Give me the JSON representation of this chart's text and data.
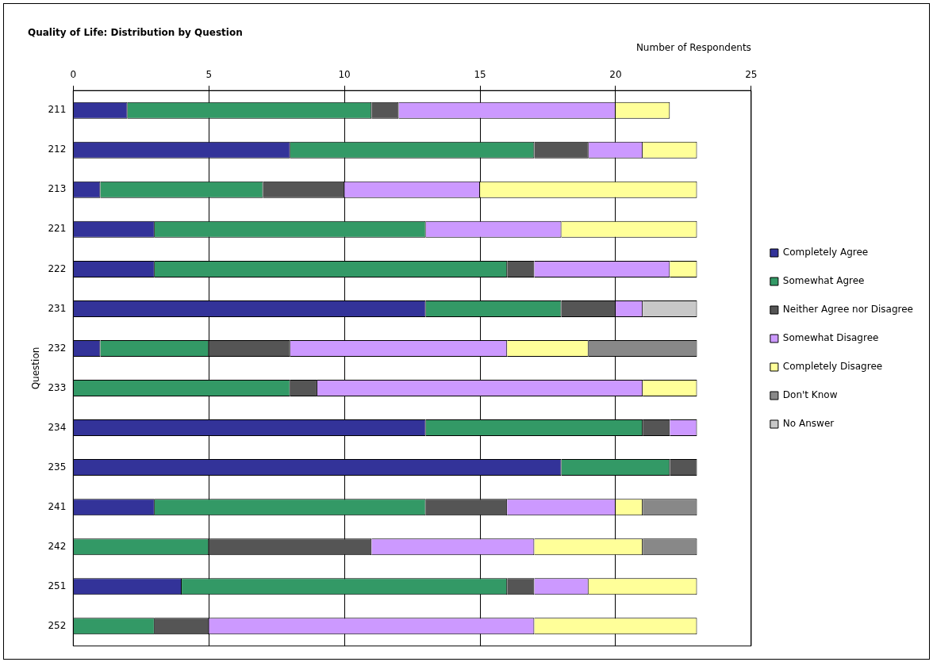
{
  "chart_data": {
    "type": "bar",
    "orientation": "horizontal",
    "stacked": true,
    "title": "Quality of Life: Distribution by Question",
    "xlabel": "Number of Respondents",
    "ylabel": "Question",
    "categories": [
      "211",
      "212",
      "213",
      "221",
      "222",
      "231",
      "232",
      "233",
      "234",
      "235",
      "241",
      "242",
      "251",
      "252"
    ],
    "xlim": [
      0,
      25
    ],
    "xticks": [
      0,
      5,
      10,
      15,
      20,
      25
    ],
    "grid": "x",
    "legend": "right",
    "series": [
      {
        "name": "Completely Agree",
        "color": "#333399",
        "values": [
          2,
          8,
          1,
          3,
          3,
          13,
          1,
          0,
          13,
          18,
          3,
          0,
          4,
          0
        ]
      },
      {
        "name": "Somewhat Agree",
        "color": "#339966",
        "values": [
          9,
          9,
          6,
          10,
          13,
          5,
          4,
          8,
          8,
          4,
          10,
          5,
          12,
          3
        ]
      },
      {
        "name": "Neither Agree nor Disagree",
        "color": "#555555",
        "values": [
          1,
          2,
          3,
          0,
          1,
          2,
          3,
          1,
          1,
          1,
          3,
          6,
          1,
          2
        ]
      },
      {
        "name": "Somewhat Disagree",
        "color": "#cc99ff",
        "values": [
          8,
          2,
          5,
          5,
          5,
          1,
          8,
          12,
          1,
          0,
          4,
          6,
          2,
          12
        ]
      },
      {
        "name": "Completely Disagree",
        "color": "#ffff99",
        "values": [
          2,
          2,
          8,
          5,
          1,
          0,
          3,
          2,
          0,
          0,
          1,
          4,
          4,
          6
        ]
      },
      {
        "name": "Don't Know",
        "color": "#888888",
        "values": [
          0,
          0,
          0,
          0,
          0,
          0,
          4,
          0,
          0,
          0,
          2,
          2,
          0,
          0
        ]
      },
      {
        "name": "No Answer",
        "color": "#c8c8c8",
        "values": [
          0,
          0,
          0,
          0,
          0,
          2,
          0,
          0,
          0,
          0,
          0,
          0,
          0,
          0
        ]
      }
    ]
  }
}
